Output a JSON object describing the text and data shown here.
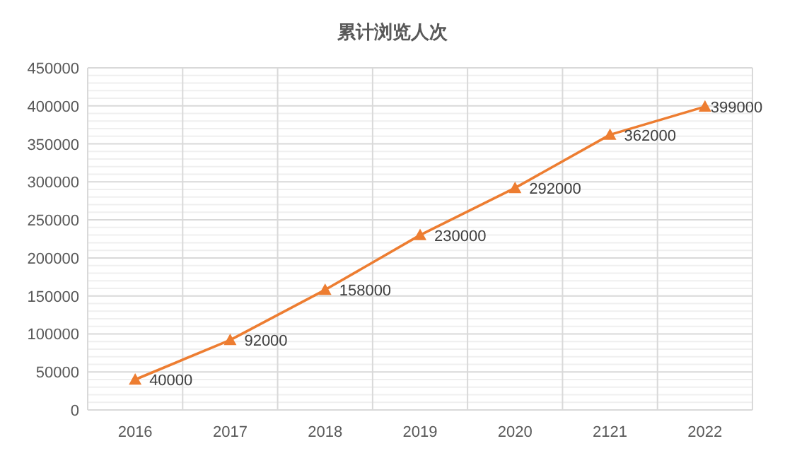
{
  "chart_data": {
    "type": "line",
    "title": "累计浏览人次",
    "categories": [
      "2016",
      "2017",
      "2018",
      "2019",
      "2020",
      "2121",
      "2022"
    ],
    "series": [
      {
        "color": "#ed7d31",
        "values": [
          40000,
          92000,
          158000,
          230000,
          292000,
          362000,
          399000
        ]
      }
    ],
    "ylim": [
      0,
      450000
    ],
    "yticks": [
      0,
      {
        "value": 10000,
        "label": null
      },
      {
        "value": 20000,
        "label": null
      },
      {
        "value": 30000,
        "label": null
      },
      {
        "value": 40000,
        "label": null
      },
      50000,
      {
        "value": 60000,
        "label": null
      },
      {
        "value": 70000,
        "label": null
      },
      {
        "value": 80000,
        "label": null
      },
      {
        "value": 90000,
        "label": null
      },
      100000,
      {
        "value": 110000,
        "label": null
      },
      {
        "value": 120000,
        "label": null
      },
      {
        "value": 130000,
        "label": null
      },
      {
        "value": 140000,
        "label": null
      },
      150000,
      {
        "value": 160000,
        "label": null
      },
      {
        "value": 170000,
        "label": null
      },
      {
        "value": 180000,
        "label": null
      },
      {
        "value": 190000,
        "label": null
      },
      200000,
      {
        "value": 210000,
        "label": null
      },
      {
        "value": 220000,
        "label": null
      },
      {
        "value": 230000,
        "label": null
      },
      {
        "value": 240000,
        "label": null
      },
      250000,
      {
        "value": 260000,
        "label": null
      },
      {
        "value": 270000,
        "label": null
      },
      {
        "value": 280000,
        "label": null
      },
      {
        "value": 290000,
        "label": null
      },
      300000,
      {
        "value": 310000,
        "label": null
      },
      {
        "value": 320000,
        "label": null
      },
      {
        "value": 330000,
        "label": null
      },
      {
        "value": 340000,
        "label": null
      },
      350000,
      {
        "value": 360000,
        "label": null
      },
      {
        "value": 370000,
        "label": null
      },
      {
        "value": 380000,
        "label": null
      },
      {
        "value": 390000,
        "label": null
      },
      400000,
      {
        "value": 410000,
        "label": null
      },
      {
        "value": 420000,
        "label": null
      },
      {
        "value": 430000,
        "label": null
      },
      {
        "value": 440000,
        "label": null
      },
      450000
    ],
    "grid": true,
    "marker": "triangle",
    "line_style": "solid",
    "data_labels": true
  }
}
